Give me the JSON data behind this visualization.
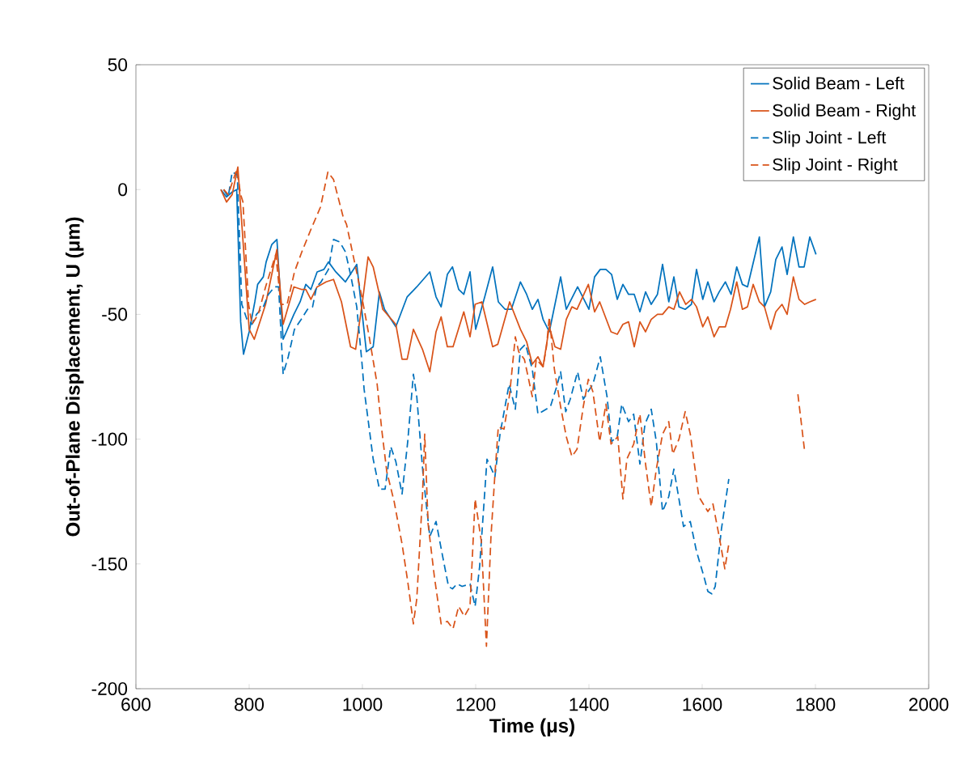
{
  "chart_data": {
    "type": "line",
    "xlabel": "Time (μs)",
    "ylabel": "Out-of-Plane Displacement, U (μm)",
    "xlim": [
      600,
      2000
    ],
    "ylim": [
      -200,
      50
    ],
    "xticks": [
      600,
      800,
      1000,
      1200,
      1400,
      1600,
      1800,
      2000
    ],
    "yticks": [
      -200,
      -150,
      -100,
      -50,
      0,
      50
    ],
    "legend": "top right",
    "grid": false,
    "series": [
      {
        "name": "Solid Beam - Left",
        "color": "#0072bd",
        "line_style": "solid",
        "x": [
          750,
          760,
          770,
          778,
          785,
          790,
          800,
          810,
          815,
          825,
          830,
          840,
          849,
          860,
          879,
          890,
          900,
          909,
          920,
          932,
          940,
          953,
          970,
          990,
          1007,
          1019,
          1030,
          1039,
          1059,
          1079,
          1096,
          1119,
          1130,
          1139,
          1150,
          1159,
          1170,
          1179,
          1190,
          1200,
          1216,
          1230,
          1240,
          1252,
          1263,
          1279,
          1290,
          1300,
          1310,
          1319,
          1330,
          1350,
          1360,
          1380,
          1400,
          1410,
          1420,
          1430,
          1440,
          1450,
          1460,
          1470,
          1480,
          1490,
          1500,
          1510,
          1521,
          1530,
          1541,
          1550,
          1559,
          1570,
          1581,
          1590,
          1601,
          1610,
          1621,
          1630,
          1641,
          1651,
          1661,
          1671,
          1680,
          1701,
          1710,
          1721,
          1730,
          1741,
          1750,
          1761,
          1771,
          1780,
          1790,
          1801
        ],
        "values": [
          0,
          -3,
          -1,
          0,
          -53,
          -66,
          -57,
          -45,
          -38,
          -35,
          -29,
          -22,
          -20,
          -60,
          -50,
          -45,
          -38,
          -40,
          -33,
          -32,
          -29,
          -33,
          -37,
          -30,
          -65,
          -63,
          -41,
          -48,
          -55,
          -43,
          -39,
          -33,
          -43,
          -47,
          -34,
          -31,
          -40,
          -42,
          -33,
          -56,
          -43,
          -31,
          -45,
          -48,
          -48,
          -37,
          -42,
          -48,
          -44,
          -52,
          -57,
          -35,
          -48,
          -39,
          -48,
          -35,
          -32,
          -32,
          -34,
          -44,
          -38,
          -42,
          -42,
          -49,
          -41,
          -46,
          -42,
          -30,
          -45,
          -35,
          -47,
          -48,
          -46,
          -32,
          -44,
          -37,
          -45,
          -41,
          -37,
          -42,
          -31,
          -38,
          -39,
          -19,
          -47,
          -41,
          -28,
          -23,
          -34,
          -19,
          -31,
          -31,
          -19,
          -26
        ]
      },
      {
        "name": "Solid Beam - Right",
        "color": "#d95319",
        "line_style": "solid",
        "x": [
          750,
          760,
          770,
          780,
          800,
          809,
          829,
          849,
          860,
          879,
          892,
          900,
          909,
          920,
          936,
          949,
          963,
          979,
          988,
          1000,
          1010,
          1019,
          1036,
          1059,
          1070,
          1079,
          1090,
          1106,
          1119,
          1130,
          1139,
          1150,
          1160,
          1179,
          1190,
          1199,
          1211,
          1230,
          1239,
          1260,
          1279,
          1290,
          1300,
          1310,
          1319,
          1330,
          1340,
          1350,
          1360,
          1370,
          1379,
          1399,
          1410,
          1419,
          1439,
          1450,
          1460,
          1470,
          1480,
          1490,
          1500,
          1510,
          1521,
          1530,
          1541,
          1550,
          1560,
          1571,
          1581,
          1590,
          1601,
          1610,
          1621,
          1630,
          1641,
          1650,
          1661,
          1671,
          1680,
          1690,
          1701,
          1710,
          1721,
          1730,
          1741,
          1750,
          1761,
          1771,
          1781,
          1790,
          1801
        ],
        "values": [
          0,
          -5,
          -2,
          9,
          -56,
          -60,
          -46,
          -24,
          -54,
          -39,
          -40,
          -40,
          -44,
          -39,
          -37,
          -36,
          -45,
          -63,
          -64,
          -45,
          -27,
          -31,
          -48,
          -54,
          -68,
          -68,
          -56,
          -64,
          -73,
          -57,
          -51,
          -63,
          -63,
          -49,
          -59,
          -46,
          -45,
          -63,
          -62,
          -45,
          -56,
          -61,
          -70,
          -67,
          -71,
          -55,
          -63,
          -64,
          -52,
          -47,
          -48,
          -38,
          -49,
          -45,
          -57,
          -58,
          -54,
          -53,
          -63,
          -53,
          -57,
          -52,
          -50,
          -50,
          -47,
          -48,
          -41,
          -46,
          -44,
          -47,
          -55,
          -51,
          -59,
          -55,
          -55,
          -48,
          -37,
          -48,
          -47,
          -38,
          -45,
          -47,
          -56,
          -49,
          -46,
          -50,
          -35,
          -44,
          -46,
          -45,
          -44
        ]
      },
      {
        "name": "Slip Joint - Left",
        "color": "#0072bd",
        "line_style": "dashed",
        "x": [
          755,
          763,
          770,
          779,
          787,
          796,
          805,
          813,
          825,
          834,
          845,
          852,
          860,
          869,
          880,
          892,
          903,
          912,
          919,
          927,
          940,
          949,
          960,
          970,
          979,
          990,
          999,
          1003,
          1019,
          1030,
          1040,
          1050,
          1059,
          1070,
          1080,
          1090,
          1096,
          1107,
          1119,
          1130,
          1140,
          1152,
          1159,
          1167,
          1176,
          1190,
          1199,
          1207,
          1220,
          1234,
          1243,
          1259,
          1270,
          1279,
          1288,
          1300,
          1310,
          1332,
          1343,
          1350,
          1359,
          1367,
          1380,
          1390,
          1407,
          1420,
          1432,
          1440,
          1450,
          1458,
          1470,
          1479,
          1490,
          1499,
          1510,
          1519,
          1530,
          1541,
          1550,
          1559,
          1567,
          1579,
          1590,
          1603,
          1610,
          1617,
          1623,
          1634,
          1647
        ],
        "values": [
          0,
          -3,
          7,
          6,
          -46,
          -52,
          -54,
          -50,
          -47,
          -42,
          -39,
          -39,
          -74,
          -67,
          -56,
          -52,
          -48,
          -47,
          -39,
          -37,
          -32,
          -20,
          -21,
          -25,
          -34,
          -47,
          -69,
          -80,
          -108,
          -120,
          -120,
          -103,
          -109,
          -122,
          -101,
          -74,
          -83,
          -114,
          -139,
          -133,
          -145,
          -159,
          -160,
          -158,
          -159,
          -158,
          -167,
          -151,
          -108,
          -115,
          -98,
          -78,
          -88,
          -64,
          -62,
          -72,
          -90,
          -87,
          -79,
          -73,
          -89,
          -84,
          -73,
          -84,
          -78,
          -67,
          -83,
          -101,
          -99,
          -86,
          -93,
          -90,
          -110,
          -94,
          -88,
          -101,
          -129,
          -123,
          -112,
          -124,
          -135,
          -133,
          -145,
          -155,
          -161,
          -162,
          -159,
          -136,
          -116
        ]
      },
      {
        "name": "Slip Joint - Right",
        "color": "#d95319",
        "line_style": "dashed",
        "x": [
          755,
          763,
          778,
          785,
          789,
          799,
          805,
          816,
          829,
          847,
          856,
          867,
          880,
          893,
          909,
          926,
          939,
          949,
          966,
          972,
          986,
          999,
          1012,
          1026,
          1034,
          1043,
          1056,
          1070,
          1080,
          1090,
          1096,
          1106,
          1110,
          1116,
          1127,
          1139,
          1150,
          1160,
          1170,
          1180,
          1190,
          1199,
          1210,
          1219,
          1227,
          1234,
          1240,
          1250,
          1260,
          1270,
          1276,
          1286,
          1300,
          1307,
          1319,
          1325,
          1330,
          1339,
          1350,
          1360,
          1370,
          1379,
          1390,
          1399,
          1407,
          1419,
          1430,
          1439,
          1451,
          1460,
          1467,
          1479,
          1490,
          1500,
          1510,
          1519,
          1530,
          1541,
          1548,
          1559,
          1570,
          1579,
          1594,
          1610,
          1619,
          1630,
          1640,
          1647,
          1700,
          1769,
          1781
        ],
        "values": [
          0,
          -2,
          8,
          -2,
          -5,
          -46,
          -54,
          -50,
          -39,
          -26,
          -46,
          -46,
          -33,
          -25,
          -16,
          -7,
          7,
          4,
          -11,
          -14,
          -29,
          -43,
          -59,
          -78,
          -96,
          -113,
          -125,
          -142,
          -157,
          -174,
          -164,
          -123,
          -98,
          -134,
          -155,
          -174,
          -173,
          -176,
          -167,
          -171,
          -167,
          -124,
          -141,
          -183,
          -139,
          -114,
          -95,
          -96,
          -82,
          -59,
          -65,
          -68,
          -83,
          -68,
          -71,
          -63,
          -51,
          -72,
          -87,
          -99,
          -107,
          -104,
          -87,
          -76,
          -81,
          -101,
          -86,
          -102,
          -99,
          -124,
          -108,
          -102,
          -90,
          -110,
          -127,
          -112,
          -98,
          -93,
          -106,
          -100,
          -89,
          -98,
          -123,
          -129,
          -126,
          -139,
          -152,
          -142,
          null,
          -82,
          -105
        ]
      }
    ]
  }
}
